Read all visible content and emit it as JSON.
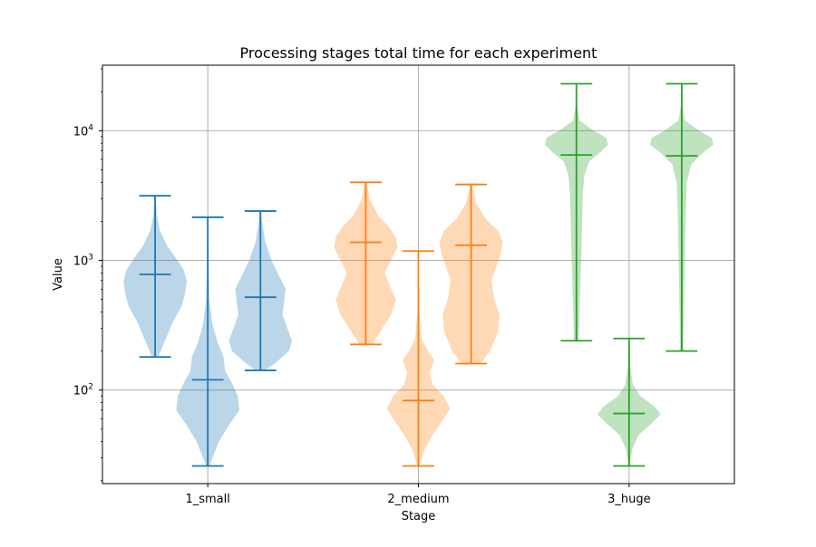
{
  "chart_data": {
    "type": "violin",
    "title": "Processing stages total time for each experiment",
    "xlabel": "Stage",
    "ylabel": "Value",
    "yscale": "log",
    "ylim": [
      19,
      32000
    ],
    "grid": true,
    "categories": [
      "1_small",
      "2_medium",
      "3_huge"
    ],
    "y_ticks": [
      {
        "value": 100,
        "base": "10",
        "exp": "2"
      },
      {
        "value": 1000,
        "base": "10",
        "exp": "3"
      },
      {
        "value": 10000,
        "base": "10",
        "exp": "4"
      }
    ],
    "colors": {
      "1_small": "#1f77b4",
      "2_medium": "#ff7f0e",
      "3_huge": "#2ca02c"
    },
    "violins": [
      {
        "category": "1_small",
        "x": 0.75,
        "min": 180,
        "max": 3150,
        "median": 780,
        "profile": [
          [
            180,
            0.1
          ],
          [
            230,
            0.28
          ],
          [
            330,
            0.55
          ],
          [
            450,
            0.85
          ],
          [
            560,
            0.95
          ],
          [
            700,
            1.0
          ],
          [
            850,
            0.9
          ],
          [
            1050,
            0.65
          ],
          [
            1300,
            0.38
          ],
          [
            1700,
            0.15
          ],
          [
            2300,
            0.05
          ],
          [
            3150,
            0.02
          ]
        ]
      },
      {
        "category": "1_small",
        "x": 1.0,
        "min": 26,
        "max": 2150,
        "median": 120,
        "profile": [
          [
            26,
            0.05
          ],
          [
            30,
            0.15
          ],
          [
            40,
            0.35
          ],
          [
            55,
            0.7
          ],
          [
            70,
            1.0
          ],
          [
            90,
            0.95
          ],
          [
            115,
            0.75
          ],
          [
            140,
            0.55
          ],
          [
            180,
            0.5
          ],
          [
            230,
            0.32
          ],
          [
            320,
            0.15
          ],
          [
            500,
            0.05
          ],
          [
            900,
            0.03
          ],
          [
            2150,
            0.02
          ]
        ]
      },
      {
        "category": "1_small",
        "x": 1.25,
        "min": 142,
        "max": 2400,
        "median": 520,
        "profile": [
          [
            142,
            0.15
          ],
          [
            160,
            0.45
          ],
          [
            200,
            0.9
          ],
          [
            240,
            1.0
          ],
          [
            300,
            0.85
          ],
          [
            380,
            0.7
          ],
          [
            480,
            0.75
          ],
          [
            600,
            0.8
          ],
          [
            750,
            0.6
          ],
          [
            1000,
            0.35
          ],
          [
            1400,
            0.15
          ],
          [
            2000,
            0.05
          ],
          [
            2400,
            0.02
          ]
        ]
      },
      {
        "category": "2_medium",
        "x": 1.75,
        "min": 225,
        "max": 4000,
        "median": 1380,
        "profile": [
          [
            225,
            0.2
          ],
          [
            280,
            0.45
          ],
          [
            380,
            0.8
          ],
          [
            500,
            0.95
          ],
          [
            650,
            0.75
          ],
          [
            800,
            0.6
          ],
          [
            1000,
            0.8
          ],
          [
            1250,
            1.0
          ],
          [
            1500,
            0.95
          ],
          [
            1800,
            0.75
          ],
          [
            2200,
            0.4
          ],
          [
            3000,
            0.12
          ],
          [
            4000,
            0.03
          ]
        ]
      },
      {
        "category": "2_medium",
        "x": 2.0,
        "min": 26,
        "max": 1180,
        "median": 83,
        "profile": [
          [
            26,
            0.03
          ],
          [
            35,
            0.2
          ],
          [
            45,
            0.45
          ],
          [
            60,
            0.8
          ],
          [
            72,
            1.0
          ],
          [
            90,
            0.8
          ],
          [
            110,
            0.45
          ],
          [
            135,
            0.35
          ],
          [
            170,
            0.5
          ],
          [
            200,
            0.3
          ],
          [
            250,
            0.1
          ],
          [
            400,
            0.03
          ],
          [
            1180,
            0.01
          ]
        ]
      },
      {
        "category": "2_medium",
        "x": 2.25,
        "min": 160,
        "max": 3850,
        "median": 1310,
        "profile": [
          [
            160,
            0.3
          ],
          [
            200,
            0.6
          ],
          [
            280,
            0.85
          ],
          [
            380,
            0.9
          ],
          [
            520,
            0.72
          ],
          [
            700,
            0.65
          ],
          [
            900,
            0.8
          ],
          [
            1150,
            0.95
          ],
          [
            1400,
            1.0
          ],
          [
            1700,
            0.85
          ],
          [
            2100,
            0.45
          ],
          [
            2800,
            0.15
          ],
          [
            3850,
            0.03
          ]
        ]
      },
      {
        "category": "3_huge",
        "x": 2.75,
        "min": 240,
        "max": 23000,
        "median": 6500,
        "profile": [
          [
            240,
            0.08
          ],
          [
            400,
            0.1
          ],
          [
            700,
            0.13
          ],
          [
            1200,
            0.16
          ],
          [
            2000,
            0.18
          ],
          [
            3200,
            0.2
          ],
          [
            4500,
            0.25
          ],
          [
            5800,
            0.4
          ],
          [
            6800,
            0.75
          ],
          [
            7800,
            1.0
          ],
          [
            8800,
            0.95
          ],
          [
            10000,
            0.55
          ],
          [
            12000,
            0.1
          ],
          [
            16000,
            0.02
          ],
          [
            23000,
            0.01
          ]
        ]
      },
      {
        "category": "3_huge",
        "x": 3.0,
        "min": 26,
        "max": 250,
        "median": 66,
        "profile": [
          [
            26,
            0.02
          ],
          [
            35,
            0.1
          ],
          [
            45,
            0.3
          ],
          [
            55,
            0.7
          ],
          [
            65,
            1.0
          ],
          [
            75,
            0.8
          ],
          [
            90,
            0.35
          ],
          [
            110,
            0.12
          ],
          [
            150,
            0.04
          ],
          [
            250,
            0.01
          ]
        ]
      },
      {
        "category": "3_huge",
        "x": 3.25,
        "min": 200,
        "max": 23000,
        "median": 6400,
        "profile": [
          [
            200,
            0.05
          ],
          [
            400,
            0.07
          ],
          [
            800,
            0.09
          ],
          [
            1500,
            0.11
          ],
          [
            2500,
            0.13
          ],
          [
            4000,
            0.16
          ],
          [
            5500,
            0.3
          ],
          [
            6700,
            0.65
          ],
          [
            7800,
            1.0
          ],
          [
            8800,
            0.95
          ],
          [
            10000,
            0.55
          ],
          [
            12000,
            0.1
          ],
          [
            16000,
            0.02
          ],
          [
            23000,
            0.01
          ]
        ]
      }
    ]
  }
}
